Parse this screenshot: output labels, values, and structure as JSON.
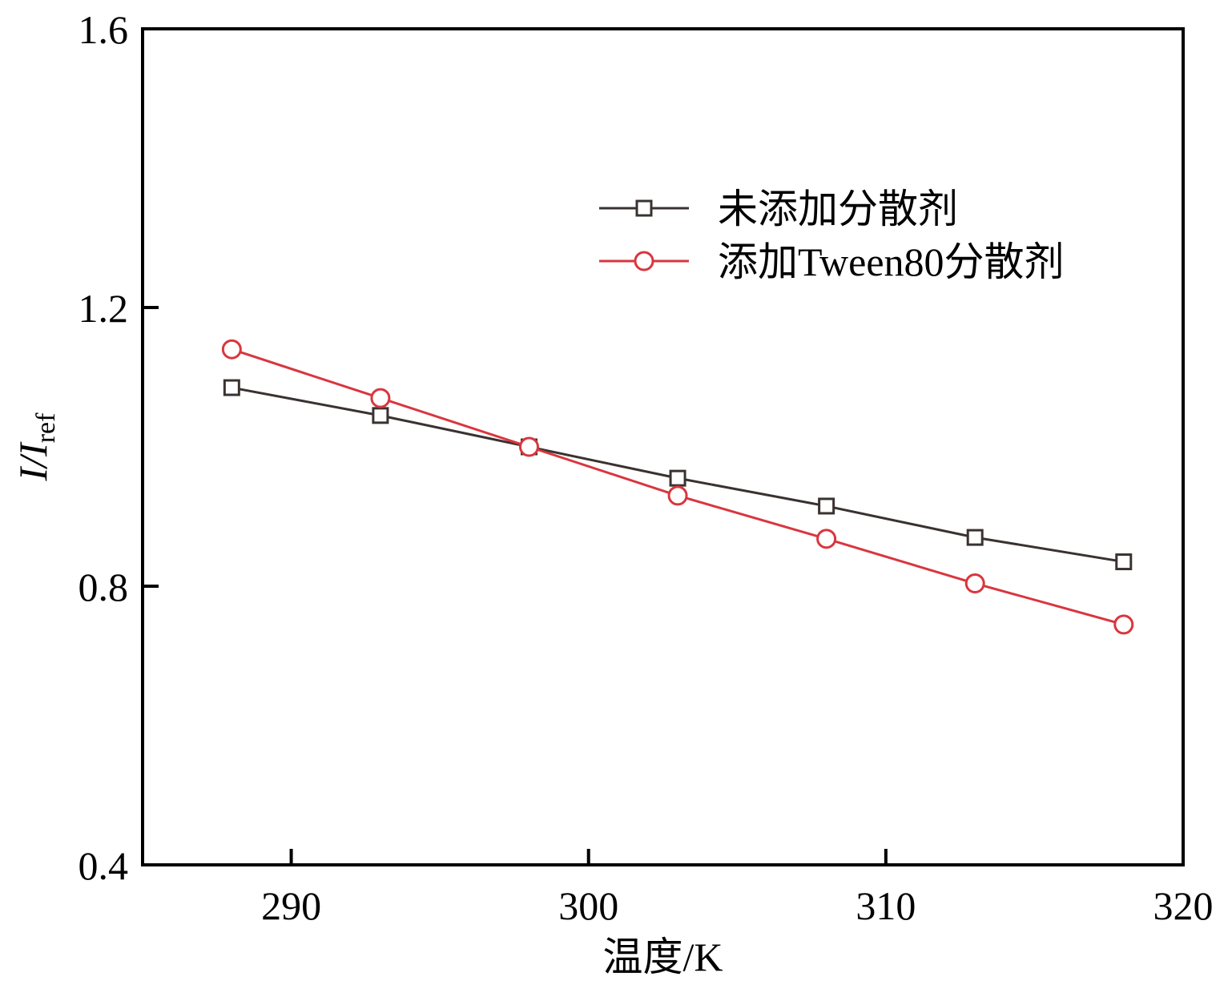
{
  "chart_data": {
    "type": "line",
    "xlabel": "温度/K",
    "ylabel": {
      "main": "I/I",
      "sub": "ref"
    },
    "xlim": [
      285,
      320
    ],
    "ylim": [
      0.4,
      1.6
    ],
    "xticks": [
      290,
      300,
      310,
      320
    ],
    "yticks": [
      0.4,
      0.8,
      1.2,
      1.6
    ],
    "xtick_labels": [
      "290",
      "300",
      "310",
      "320"
    ],
    "ytick_labels": [
      "0.4",
      "0.8",
      "1.2",
      "1.6"
    ],
    "grid": false,
    "legend_position": "top-right",
    "series": [
      {
        "name": "未添加分散剂",
        "color": "#3a3230",
        "marker": "square",
        "x": [
          288,
          293,
          298,
          303,
          308,
          313,
          318
        ],
        "y": [
          1.085,
          1.045,
          1.0,
          0.955,
          0.915,
          0.87,
          0.835
        ]
      },
      {
        "name": "添加Tween80分散剂",
        "color": "#d9363e",
        "marker": "circle",
        "x": [
          288,
          293,
          298,
          303,
          308,
          313,
          318
        ],
        "y": [
          1.14,
          1.07,
          1.0,
          0.93,
          0.868,
          0.804,
          0.745
        ]
      }
    ]
  }
}
